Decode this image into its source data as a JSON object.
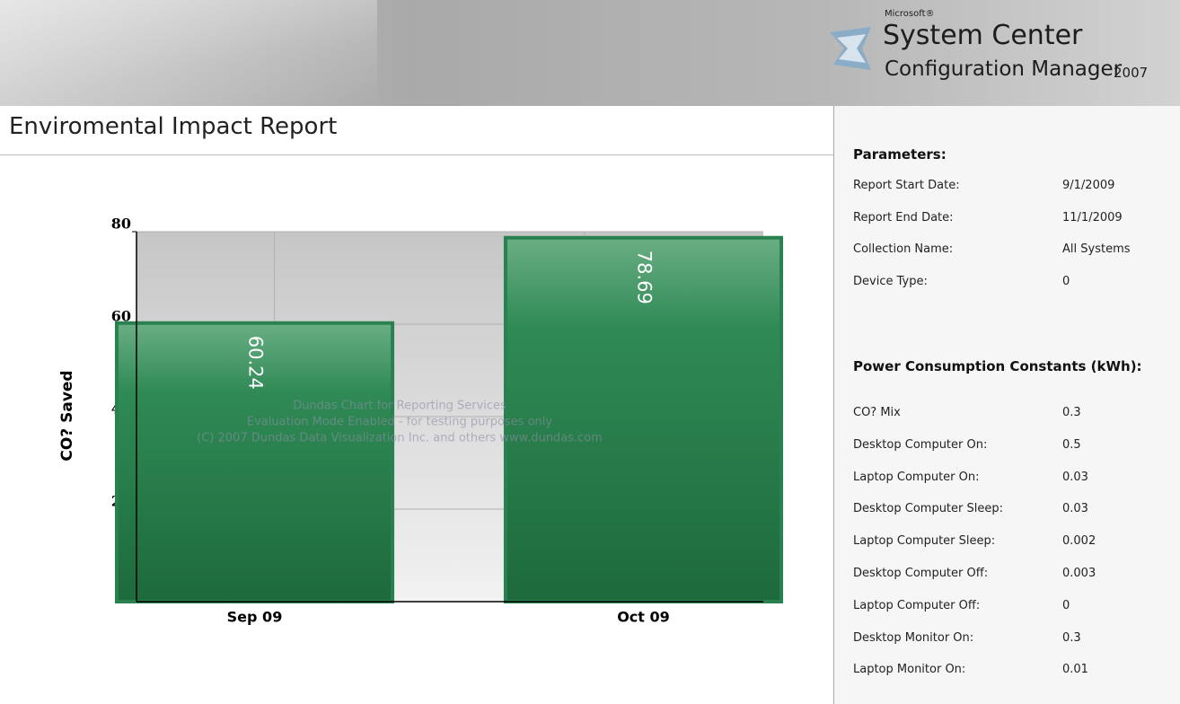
{
  "header": {
    "brand": "Microsoft®",
    "product": "System Center",
    "subproduct": "Configuration Manager",
    "version": "2007"
  },
  "report": {
    "title": "Enviromental Impact Report"
  },
  "chart_data": {
    "type": "bar",
    "y_label": "CO? Saved",
    "categories": [
      "Sep 09",
      "Oct 09"
    ],
    "values": [
      60.24,
      78.69
    ],
    "color": "#2a8150",
    "ylim": [
      0,
      80
    ],
    "yticks": [
      0,
      20,
      40,
      60,
      80
    ],
    "grid": true,
    "watermark": [
      "Dundas Chart for Reporting Services",
      "Evaluation Mode Enabled - for testing purposes only",
      "(C) 2007 Dundas Data Visualization Inc. and others www.dundas.com"
    ]
  },
  "parameters": {
    "heading": "Parameters:",
    "rows": [
      [
        "Report Start Date:",
        "9/1/2009"
      ],
      [
        "Report End Date:",
        "11/1/2009"
      ],
      [
        "Collection Name:",
        "All Systems"
      ],
      [
        "Device Type:",
        "0"
      ]
    ]
  },
  "constants": {
    "heading": "Power Consumption Constants (kWh):",
    "rows": [
      [
        "CO? Mix",
        "0.3"
      ],
      [
        "Desktop Computer On:",
        "0.5"
      ],
      [
        "Laptop Computer On:",
        "0.03"
      ],
      [
        "Desktop Computer Sleep:",
        "0.03"
      ],
      [
        "Laptop Computer Sleep:",
        "0.002"
      ],
      [
        "Desktop Computer Off:",
        "0.003"
      ],
      [
        "Laptop Computer Off:",
        "0"
      ],
      [
        "Desktop Monitor On:",
        "0.3"
      ],
      [
        "Laptop Monitor On:",
        "0.01"
      ]
    ]
  }
}
